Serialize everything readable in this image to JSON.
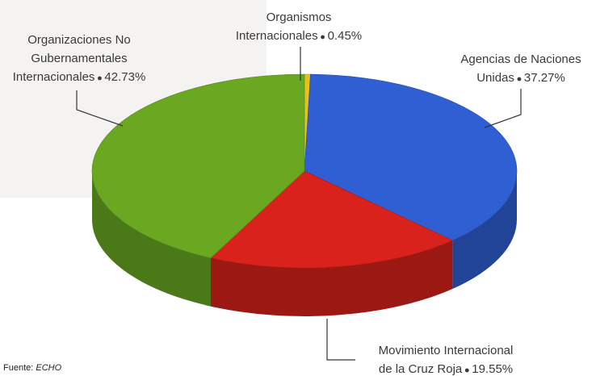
{
  "chart_data": {
    "type": "pie3d",
    "categories": [
      "Organismos Internacionales",
      "Agencias de Naciones Unidas",
      "Movimiento Internacional de la Cruz Roja",
      "Organizaciones No Gubernamentales Internacionales"
    ],
    "values": [
      0.45,
      37.27,
      19.55,
      42.73
    ],
    "value_labels": [
      "0.45%",
      "37.27%",
      "19.55%",
      "42.73%"
    ],
    "colors": [
      "#e8c21a",
      "#2f5fd3",
      "#d8221b",
      "#6aa822"
    ],
    "source": {
      "label": "Fuente:",
      "name": "ECHO"
    }
  }
}
